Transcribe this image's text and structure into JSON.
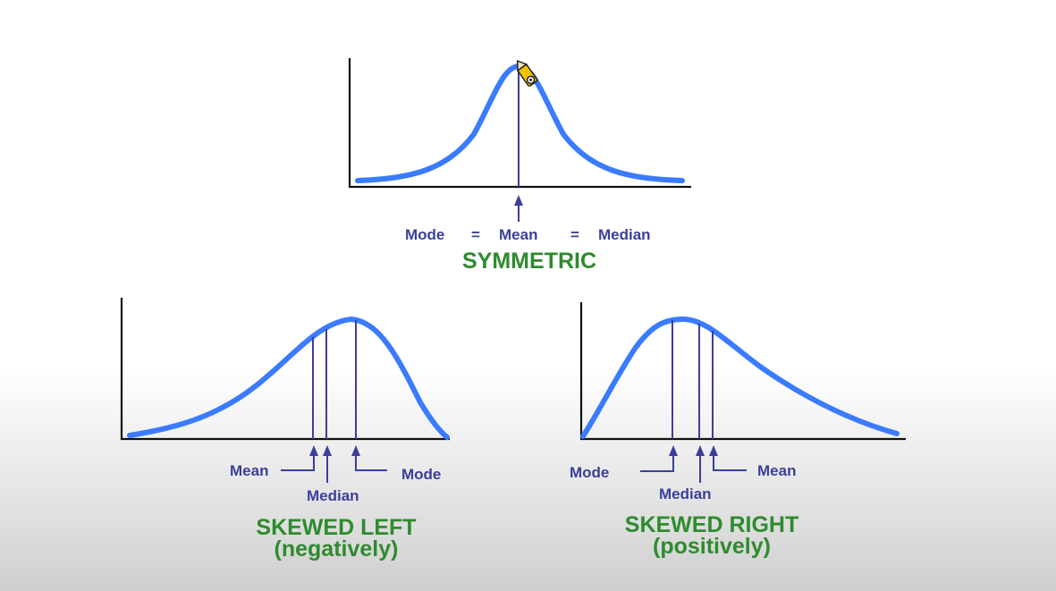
{
  "colors": {
    "curve": "#3a7bff",
    "label": "#3b3f9a",
    "title": "#2e8b2e"
  },
  "symmetric": {
    "title": "SYMMETRIC",
    "label_mode": "Mode",
    "eq1": "=",
    "label_mean": "Mean",
    "eq2": "=",
    "label_median": "Median"
  },
  "skewed_left": {
    "title": "SKEWED LEFT",
    "subtitle": "(negatively)",
    "label_mean": "Mean",
    "label_median": "Median",
    "label_mode": "Mode"
  },
  "skewed_right": {
    "title": "SKEWED RIGHT",
    "subtitle": "(positively)",
    "label_mode": "Mode",
    "label_median": "Median",
    "label_mean": "Mean"
  },
  "cursor_icon": "pencil-cursor-icon"
}
